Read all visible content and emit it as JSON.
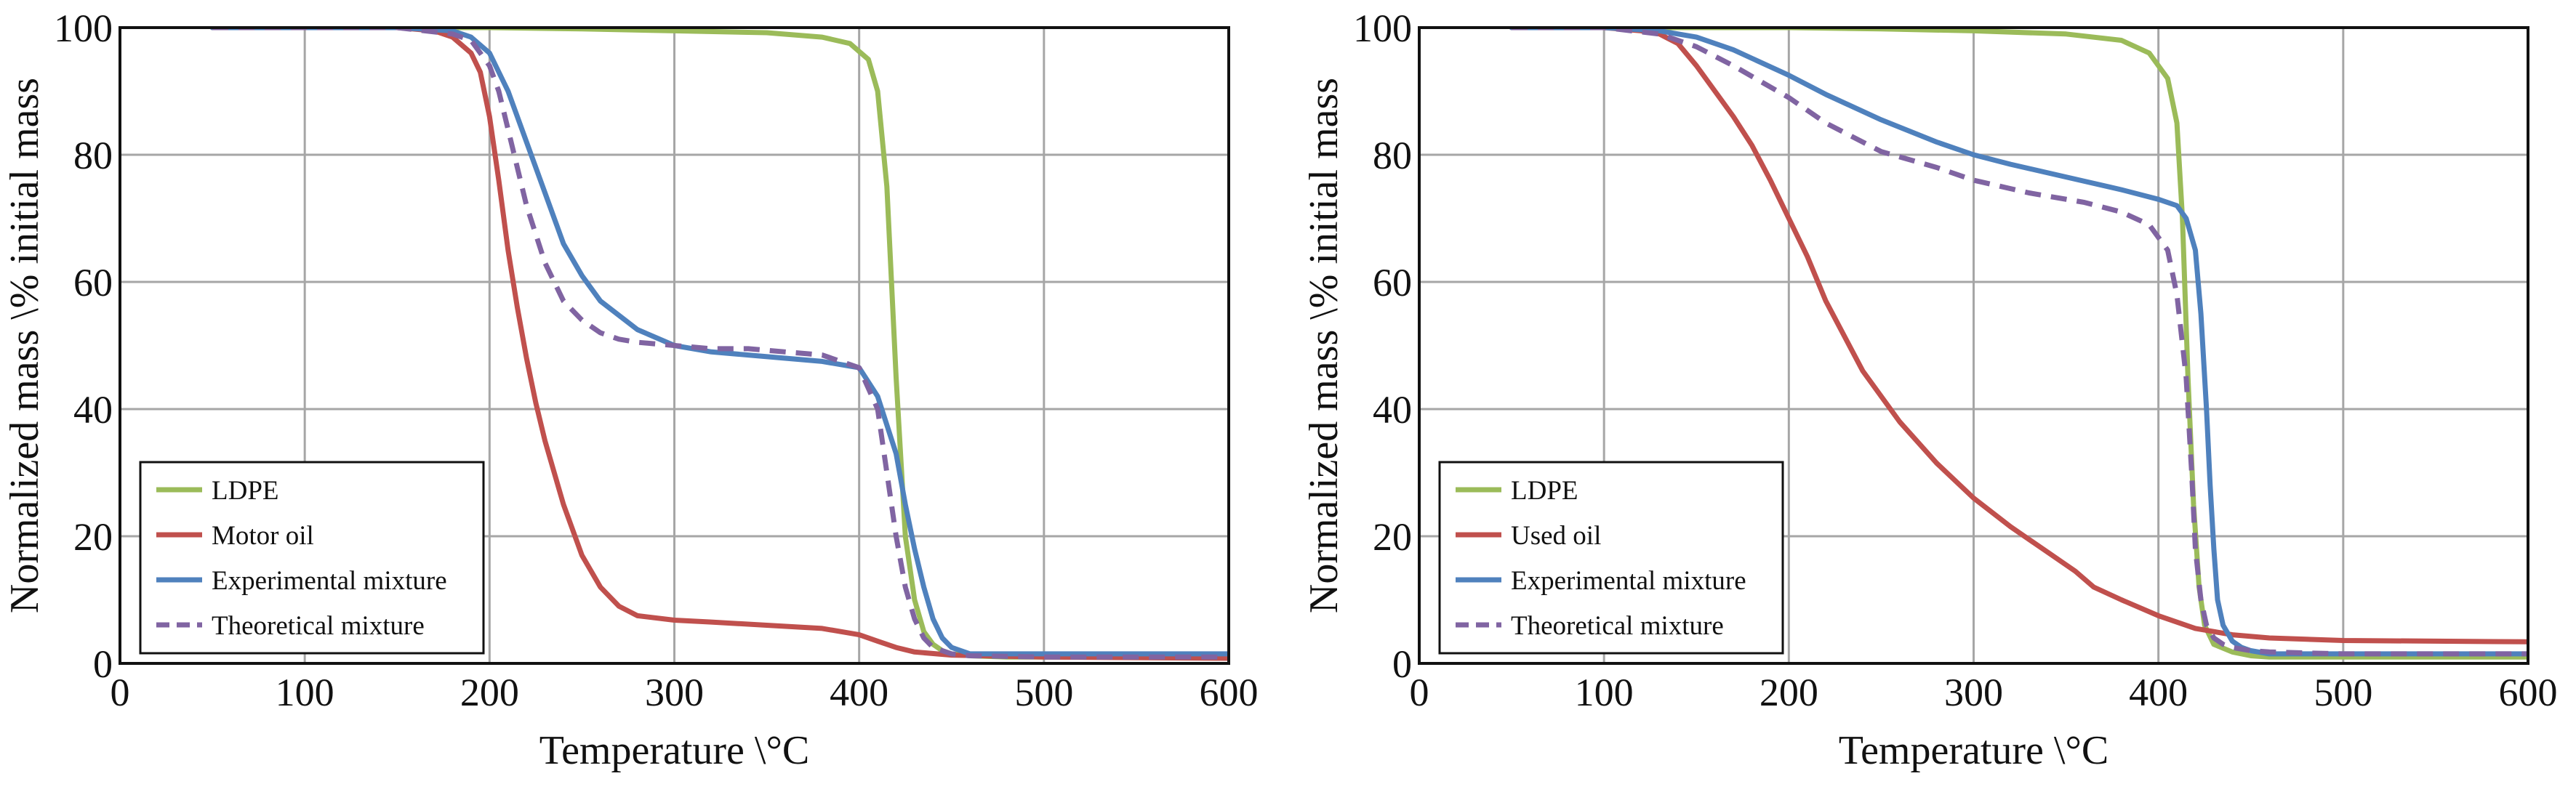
{
  "chart_data": [
    {
      "type": "line",
      "title": "",
      "xlabel": "Temperature \\°C",
      "ylabel": "Normalized mass \\% initial mass",
      "xlim": [
        0,
        600
      ],
      "ylim": [
        0,
        100
      ],
      "xticks": [
        0,
        100,
        200,
        300,
        400,
        500,
        600
      ],
      "yticks": [
        0,
        20,
        40,
        60,
        80,
        100
      ],
      "grid": true,
      "legend_position": "bottom-left",
      "series": [
        {
          "name": "LDPE",
          "color": "#9bbb59",
          "dash": "solid",
          "x": [
            50,
            100,
            150,
            200,
            250,
            300,
            350,
            380,
            395,
            405,
            410,
            415,
            420,
            425,
            430,
            435,
            440,
            445,
            450,
            460,
            480,
            500,
            600
          ],
          "y": [
            100,
            100,
            100,
            100,
            99.8,
            99.5,
            99.2,
            98.5,
            97.5,
            95,
            90,
            75,
            45,
            20,
            10,
            5,
            3,
            2,
            1.5,
            1.2,
            1,
            1,
            1
          ]
        },
        {
          "name": "Motor oil",
          "color": "#c0504d",
          "dash": "solid",
          "x": [
            50,
            100,
            150,
            170,
            180,
            190,
            195,
            200,
            205,
            210,
            215,
            220,
            225,
            230,
            240,
            250,
            260,
            270,
            280,
            300,
            320,
            350,
            380,
            400,
            410,
            420,
            430,
            450,
            500,
            600
          ],
          "y": [
            100,
            100,
            100,
            99.5,
            98.5,
            96,
            93,
            86,
            76,
            65,
            56,
            48,
            41,
            35,
            25,
            17,
            12,
            9,
            7.5,
            6.8,
            6.5,
            6,
            5.5,
            4.5,
            3.5,
            2.5,
            1.8,
            1.3,
            1,
            0.8
          ]
        },
        {
          "name": "Experimental mixture",
          "color": "#4f81bd",
          "dash": "solid",
          "x": [
            50,
            100,
            150,
            180,
            190,
            200,
            210,
            220,
            230,
            240,
            250,
            260,
            280,
            300,
            320,
            340,
            360,
            380,
            400,
            410,
            420,
            425,
            430,
            435,
            440,
            445,
            450,
            460,
            500,
            600
          ],
          "y": [
            100,
            100,
            100,
            99.5,
            98.5,
            96,
            90,
            82,
            74,
            66,
            61,
            57,
            52.5,
            50,
            49,
            48.5,
            48,
            47.5,
            46.5,
            42,
            33,
            25,
            18,
            12,
            7,
            4,
            2.5,
            1.5,
            1.5,
            1.5
          ]
        },
        {
          "name": "Theoretical mixture",
          "color": "#8064a2",
          "dash": "dashed",
          "x": [
            50,
            100,
            150,
            180,
            190,
            200,
            205,
            210,
            220,
            230,
            240,
            250,
            260,
            270,
            280,
            300,
            320,
            340,
            360,
            380,
            400,
            410,
            415,
            420,
            425,
            430,
            435,
            440,
            450,
            460,
            500,
            600
          ],
          "y": [
            100,
            100,
            100,
            99,
            98,
            94,
            90,
            84,
            72,
            63,
            57,
            54,
            52,
            51,
            50.5,
            50,
            49.5,
            49.5,
            49,
            48.5,
            46.5,
            40,
            30,
            20,
            12,
            7,
            4,
            2.5,
            1.5,
            1.2,
            1,
            1
          ]
        }
      ]
    },
    {
      "type": "line",
      "title": "",
      "xlabel": "Temperature \\°C",
      "ylabel": "Normalized mass \\% initial mass",
      "xlim": [
        0,
        600
      ],
      "ylim": [
        0,
        100
      ],
      "xticks": [
        0,
        100,
        200,
        300,
        400,
        500,
        600
      ],
      "yticks": [
        0,
        20,
        40,
        60,
        80,
        100
      ],
      "grid": true,
      "legend_position": "bottom-left",
      "series": [
        {
          "name": "LDPE",
          "color": "#9bbb59",
          "dash": "solid",
          "x": [
            50,
            100,
            150,
            200,
            250,
            300,
            350,
            380,
            395,
            405,
            410,
            413,
            416,
            419,
            422,
            425,
            430,
            440,
            450,
            460,
            500,
            600
          ],
          "y": [
            100,
            100,
            100,
            100,
            99.8,
            99.5,
            99,
            98,
            96,
            92,
            85,
            70,
            45,
            25,
            12,
            6,
            3,
            1.8,
            1.2,
            1,
            1,
            1
          ]
        },
        {
          "name": "Used oil",
          "color": "#c0504d",
          "dash": "solid",
          "x": [
            50,
            100,
            120,
            130,
            140,
            150,
            160,
            170,
            180,
            190,
            200,
            210,
            220,
            240,
            260,
            280,
            300,
            320,
            340,
            355,
            365,
            380,
            400,
            420,
            440,
            460,
            500,
            550,
            600
          ],
          "y": [
            100,
            100,
            99.5,
            99,
            97.5,
            94,
            90,
            86,
            81.5,
            76,
            70,
            64,
            57,
            46,
            38,
            31.5,
            26,
            21.5,
            17.5,
            14.5,
            12,
            10,
            7.5,
            5.5,
            4.5,
            4,
            3.6,
            3.5,
            3.4
          ]
        },
        {
          "name": "Experimental mixture",
          "color": "#4f81bd",
          "dash": "solid",
          "x": [
            50,
            100,
            130,
            150,
            170,
            200,
            220,
            250,
            280,
            300,
            320,
            350,
            380,
            400,
            410,
            415,
            420,
            423,
            426,
            428,
            430,
            432,
            435,
            440,
            445,
            450,
            460,
            500,
            600
          ],
          "y": [
            100,
            100,
            99.5,
            98.5,
            96.5,
            92.5,
            89.5,
            85.5,
            82,
            80,
            78.5,
            76.5,
            74.5,
            73,
            72,
            70,
            65,
            55,
            40,
            28,
            18,
            10,
            6,
            3.5,
            2.5,
            2,
            1.5,
            1.5,
            1.5
          ]
        },
        {
          "name": "Theoretical mixture",
          "color": "#8064a2",
          "dash": "dashed",
          "x": [
            50,
            100,
            130,
            150,
            170,
            200,
            220,
            250,
            280,
            300,
            330,
            360,
            380,
            395,
            405,
            410,
            415,
            418,
            420,
            423,
            426,
            430,
            435,
            440,
            450,
            460,
            500,
            600
          ],
          "y": [
            100,
            100,
            99,
            97,
            94,
            89,
            85,
            80.5,
            78,
            76,
            74,
            72.5,
            71,
            69,
            65,
            58,
            45,
            30,
            18,
            10,
            6,
            4,
            3,
            2.5,
            2,
            1.8,
            1.5,
            1.5
          ]
        }
      ]
    }
  ]
}
